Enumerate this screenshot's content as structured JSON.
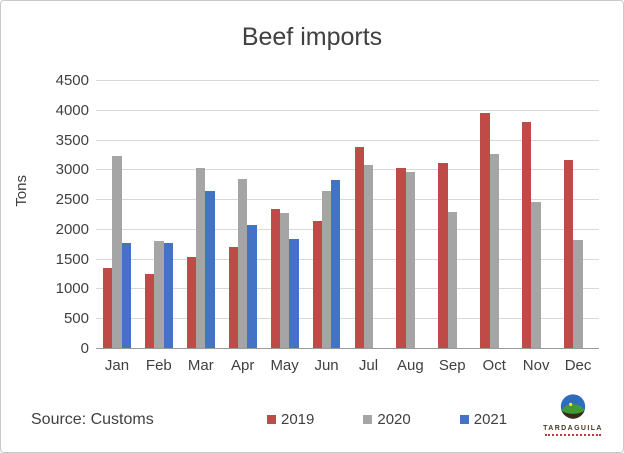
{
  "chart_data": {
    "type": "bar",
    "title": "Beef imports",
    "ylabel": "Tons",
    "xlabel": "",
    "categories": [
      "Jan",
      "Feb",
      "Mar",
      "Apr",
      "May",
      "Jun",
      "Jul",
      "Aug",
      "Sep",
      "Oct",
      "Nov",
      "Dec"
    ],
    "series": [
      {
        "name": "2019",
        "color": "#BE4B48",
        "values": [
          1350,
          1240,
          1520,
          1690,
          2330,
          2130,
          3370,
          3030,
          3100,
          3940,
          3800,
          3160
        ]
      },
      {
        "name": "2020",
        "color": "#A5A5A5",
        "values": [
          3220,
          1800,
          3020,
          2840,
          2260,
          2640,
          3080,
          2950,
          2290,
          3250,
          2460,
          1820
        ]
      },
      {
        "name": "2021",
        "color": "#4472C4",
        "values": [
          1760,
          1760,
          2630,
          2060,
          1830,
          2820,
          null,
          null,
          null,
          null,
          null,
          null
        ]
      }
    ],
    "ylim": [
      0,
      4500
    ],
    "ytick_step": 500,
    "grid": true,
    "legend_position": "bottom"
  },
  "source": {
    "text": "Source: Customs"
  },
  "logo": {
    "brand": "TARDAGUILA",
    "icon": "hill-sun-globe-icon"
  },
  "colors": {
    "grid": "#D9D9D9",
    "axis": "#9A9A9A",
    "text": "#404040",
    "frame_border": "#C9C9C9",
    "series_2019": "#BE4B48",
    "series_2020": "#A5A5A5",
    "series_2021": "#4472C4"
  }
}
